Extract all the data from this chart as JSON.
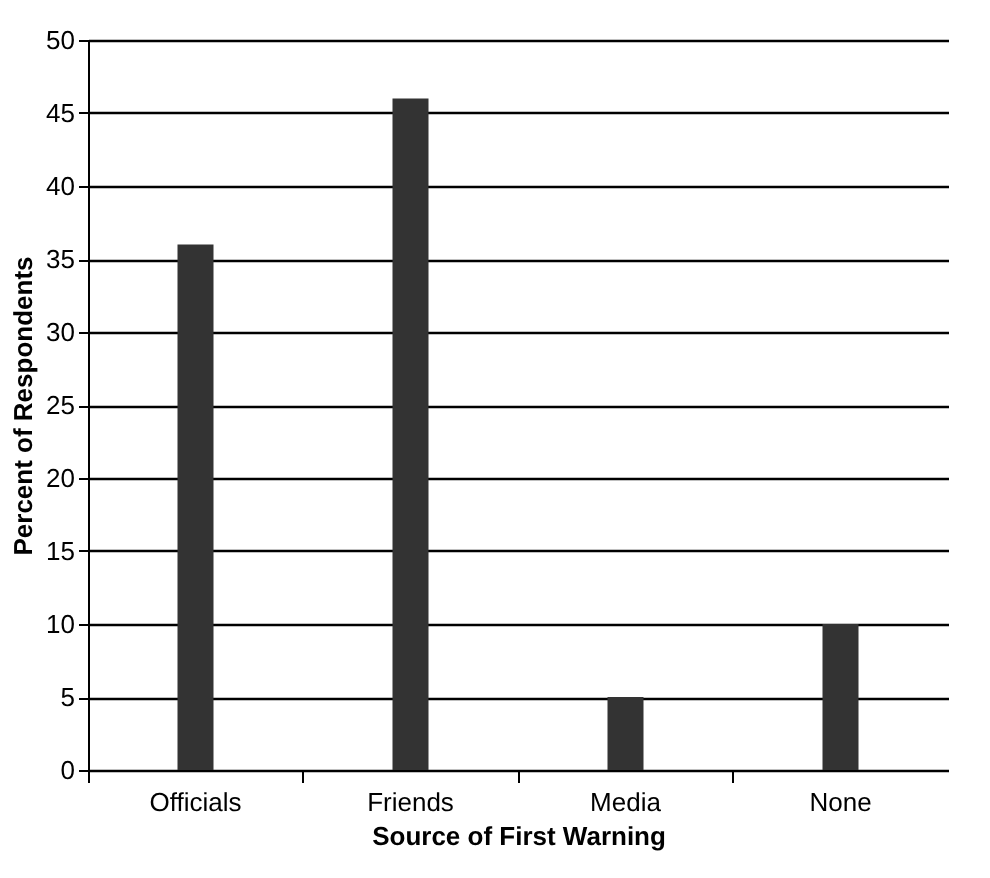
{
  "chart_data": {
    "type": "bar",
    "xlabel": "Source of First Warning",
    "ylabel": "Percent of Respondents",
    "categories": [
      "Officials",
      "Friends",
      "Media",
      "None"
    ],
    "values": [
      36,
      46,
      5,
      10
    ],
    "color": "#333333",
    "ylim": [
      0,
      50
    ],
    "yticks": [
      0,
      5,
      10,
      15,
      20,
      25,
      30,
      35,
      40,
      45,
      50
    ],
    "grid": "y"
  }
}
